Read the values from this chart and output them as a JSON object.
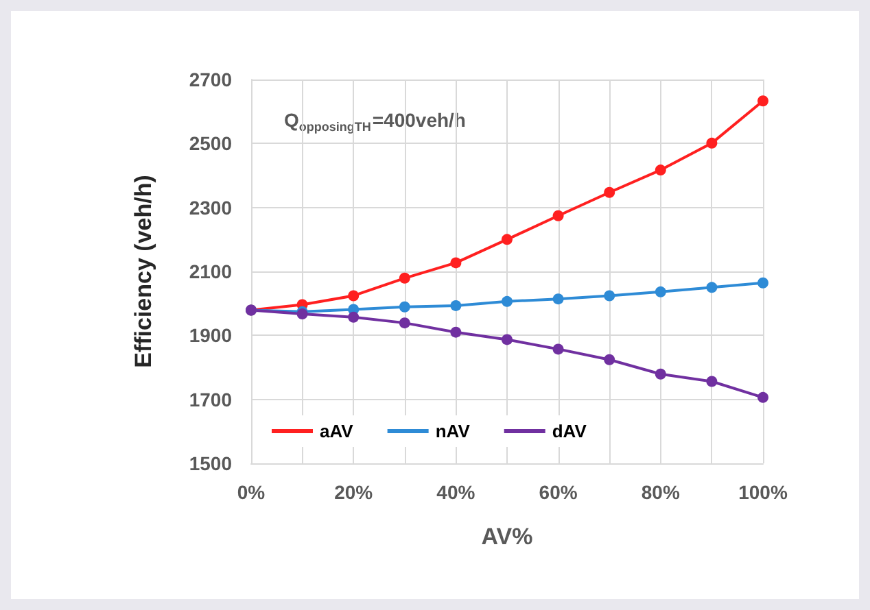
{
  "chart_data": {
    "type": "line",
    "xlabel": "AV%",
    "ylabel": "Efficiency (veh/h)",
    "annotations": [
      "Q$_{opposingTH}$=400veh/h"
    ],
    "x": [
      0,
      10,
      20,
      30,
      40,
      50,
      60,
      70,
      80,
      90,
      100
    ],
    "series": [
      {
        "name": "aAV",
        "color": "#ff2020",
        "values": [
          1979,
          1996,
          2024,
          2079,
          2127,
          2200,
          2274,
          2347,
          2417,
          2501,
          2633
        ]
      },
      {
        "name": "nAV",
        "color": "#2e8bd6",
        "values": [
          1979,
          1974,
          1981,
          1989,
          1993,
          2006,
          2014,
          2024,
          2036,
          2050,
          2064
        ]
      },
      {
        "name": "dAV",
        "color": "#7030a0",
        "values": [
          1979,
          1967,
          1957,
          1939,
          1910,
          1887,
          1857,
          1824,
          1779,
          1756,
          1706
        ]
      }
    ],
    "xlim": [
      0,
      100
    ],
    "xticks": [
      {
        "value": 0,
        "label": "0%"
      },
      {
        "value": 10,
        "label": null
      },
      {
        "value": 20,
        "label": "20%"
      },
      {
        "value": 30,
        "label": null
      },
      {
        "value": 40,
        "label": "40%"
      },
      {
        "value": 50,
        "label": null
      },
      {
        "value": 60,
        "label": "60%"
      },
      {
        "value": 70,
        "label": null
      },
      {
        "value": 80,
        "label": "80%"
      },
      {
        "value": 90,
        "label": null
      },
      {
        "value": 100,
        "label": "100%"
      }
    ],
    "ylim": [
      1500,
      2700
    ],
    "yticks": [
      1500,
      1700,
      1900,
      2100,
      2300,
      2500,
      2700
    ],
    "grid": true,
    "legend": "bottom left",
    "marker": "circle",
    "line_style": "solid"
  }
}
